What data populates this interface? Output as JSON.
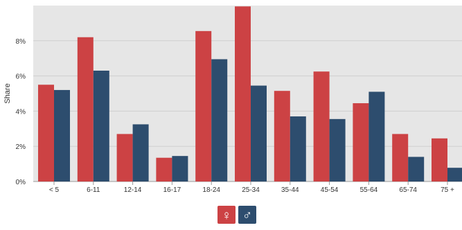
{
  "chart_data": {
    "type": "bar",
    "ylabel": "Share",
    "xlabel": "",
    "ylim": [
      0,
      10
    ],
    "yticks": [
      {
        "value": 0,
        "label": "0%"
      },
      {
        "value": 2,
        "label": "2%"
      },
      {
        "value": 4,
        "label": "4%"
      },
      {
        "value": 6,
        "label": "6%"
      },
      {
        "value": 8,
        "label": "8%"
      }
    ],
    "grid": true,
    "categories": [
      "< 5",
      "6-11",
      "12-14",
      "16-17",
      "18-24",
      "25-34",
      "35-44",
      "45-54",
      "55-64",
      "65-74",
      "75 +"
    ],
    "series": [
      {
        "legend_icon": "female-symbol-icon",
        "color": "#cc4244",
        "values": [
          5.5,
          8.2,
          2.7,
          1.35,
          8.55,
          9.95,
          5.15,
          6.25,
          4.45,
          2.7,
          2.45
        ]
      },
      {
        "legend_icon": "male-symbol-icon",
        "color": "#2d4d6e",
        "values": [
          5.2,
          6.3,
          3.25,
          1.45,
          6.95,
          5.45,
          3.7,
          3.55,
          5.1,
          1.4,
          0.78
        ]
      }
    ],
    "legend_position": "bottom-center"
  },
  "legend": {
    "female_symbol": "♀",
    "male_symbol": "♂"
  }
}
